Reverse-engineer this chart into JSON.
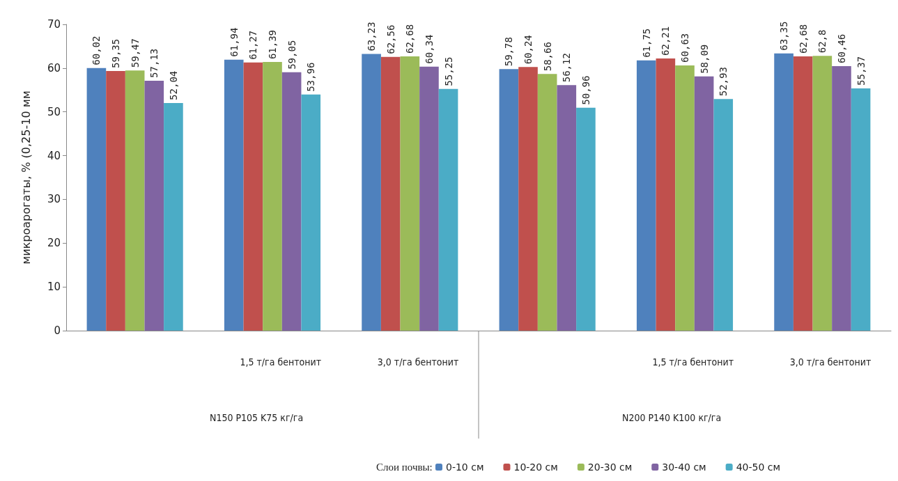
{
  "chart_data": {
    "type": "bar",
    "ylabel": "микроарогаты, % (0,25-10 мм",
    "legend_title": "Слои почвы:",
    "legend": "bottom",
    "grid": false,
    "categories": [
      null,
      "1,5 т/га бентонит",
      "3,0 т/га бентонит",
      null,
      "1,5 т/га бентонит",
      "3,0 т/га бентонит"
    ],
    "annotations": [
      "N150 P105 K75 кг/га",
      "N200 P140 K100 кг/га"
    ],
    "ylim": [
      0,
      70
    ],
    "yticks": [
      0,
      10,
      20,
      30,
      40,
      50,
      60,
      70
    ],
    "series": [
      {
        "name": "0-10 см",
        "color": "#4f81bd",
        "values": [
          60.02,
          61.94,
          63.23,
          59.78,
          61.75,
          63.35
        ],
        "value_labels": [
          "60,02",
          "61,94",
          "63,23",
          "59,78",
          "61,75",
          "63,35"
        ]
      },
      {
        "name": "10-20 см",
        "color": "#c0504d",
        "values": [
          59.35,
          61.27,
          62.56,
          60.24,
          62.21,
          62.68
        ],
        "value_labels": [
          "59,35",
          "61,27",
          "62,56",
          "60,24",
          "62,21",
          "62,68"
        ]
      },
      {
        "name": "20-30 см",
        "color": "#9bbb59",
        "values": [
          59.47,
          61.39,
          62.68,
          58.66,
          60.63,
          62.8
        ],
        "value_labels": [
          "59,47",
          "61,39",
          "62,68",
          "58,66",
          "60,63",
          "62,8"
        ]
      },
      {
        "name": "30-40 см",
        "color": "#8064a2",
        "values": [
          57.13,
          59.05,
          60.34,
          56.12,
          58.09,
          60.46
        ],
        "value_labels": [
          "57,13",
          "59,05",
          "60,34",
          "56,12",
          "58,09",
          "60,46"
        ]
      },
      {
        "name": "40-50 см",
        "color": "#4bacc6",
        "values": [
          52.04,
          53.96,
          55.25,
          50.96,
          52.93,
          55.37
        ],
        "value_labels": [
          "52,04",
          "53,96",
          "55,25",
          "50,96",
          "52,93",
          "55,37"
        ]
      }
    ]
  }
}
